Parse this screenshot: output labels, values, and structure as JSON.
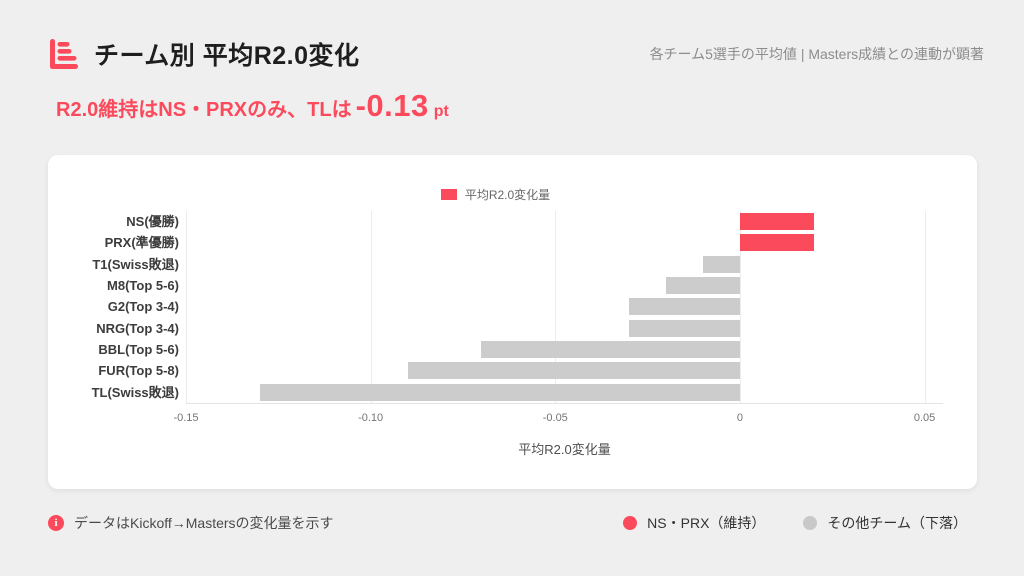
{
  "header": {
    "title": "チーム別 平均R2.0変化",
    "note": "各チーム5選手の平均値 | Masters成績との連動が顕著",
    "logo_color": "#fb4a5c"
  },
  "key_message": {
    "prefix": "R2.0維持はNS・PRXのみ、TLは",
    "value": "-0.13",
    "unit": "pt"
  },
  "chart_data": {
    "type": "bar",
    "orientation": "horizontal",
    "legend": {
      "label": "平均R2.0変化量",
      "position": "top-center",
      "swatch_color": "#fb4a5c"
    },
    "xlabel": "平均R2.0変化量",
    "xlim": [
      -0.15,
      0.055
    ],
    "xticks": [
      -0.15,
      -0.1,
      -0.05,
      0,
      0.05
    ],
    "xtick_labels": [
      "-0.15",
      "-0.10",
      "-0.05",
      "0",
      "0.05"
    ],
    "grid": true,
    "categories": [
      "NS(優勝)",
      "PRX(準優勝)",
      "T1(Swiss敗退)",
      "M8(Top 5-6)",
      "G2(Top 3-4)",
      "NRG(Top 3-4)",
      "BBL(Top 5-6)",
      "FUR(Top 5-8)",
      "TL(Swiss敗退)"
    ],
    "values": [
      0.02,
      0.02,
      -0.01,
      -0.02,
      -0.03,
      -0.03,
      -0.07,
      -0.09,
      -0.13
    ],
    "bar_colors": [
      "#fb4a5c",
      "#fb4a5c",
      "#cccccc",
      "#cccccc",
      "#cccccc",
      "#cccccc",
      "#cccccc",
      "#cccccc",
      "#cccccc"
    ]
  },
  "footer": {
    "note": "データはKickoff→Mastersの変化量を示す",
    "legend": [
      {
        "label": "NS・PRX（維持）",
        "color": "#fb4a5c"
      },
      {
        "label": "その他チーム（下落）",
        "color": "#c8c8c8"
      }
    ]
  }
}
